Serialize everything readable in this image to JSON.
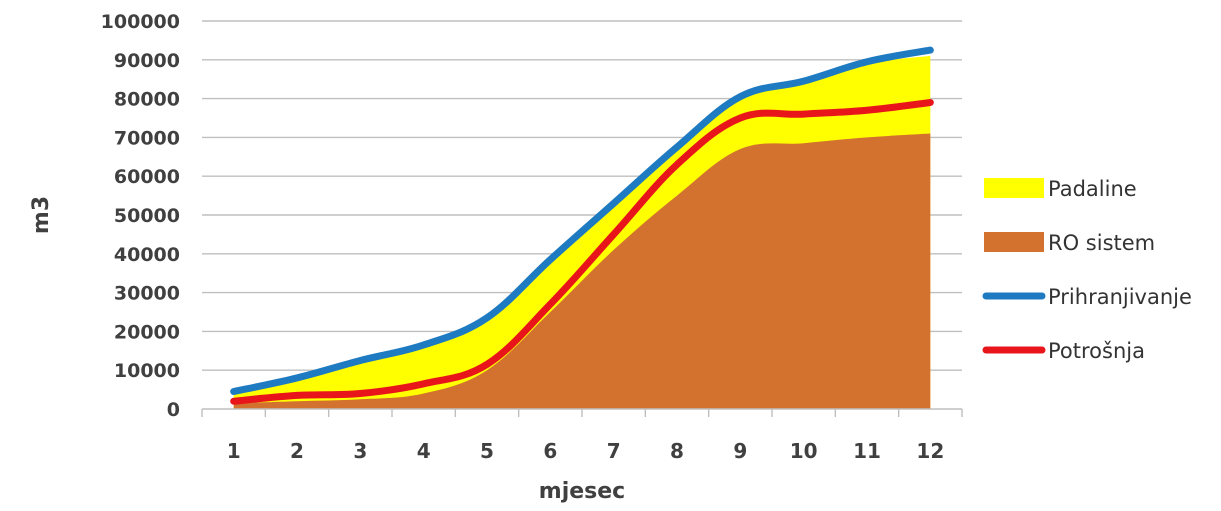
{
  "chart_data": {
    "type": "area",
    "xlabel": "mjesec",
    "ylabel": "m3",
    "ylim": [
      0,
      100000
    ],
    "yticks": [
      0,
      10000,
      20000,
      30000,
      40000,
      50000,
      60000,
      70000,
      80000,
      90000,
      100000
    ],
    "grid": true,
    "legend_position": "right",
    "categories": [
      "1",
      "2",
      "3",
      "4",
      "5",
      "6",
      "7",
      "8",
      "9",
      "10",
      "11",
      "12"
    ],
    "series": [
      {
        "name": "Padaline",
        "kind": "area",
        "color": "#ffff00",
        "values": [
          4500,
          7500,
          12000,
          16000,
          22500,
          37500,
          52000,
          67000,
          80000,
          84000,
          89000,
          91000
        ]
      },
      {
        "name": "RO sistem",
        "kind": "area",
        "color": "#d2722e",
        "values": [
          1500,
          2000,
          2500,
          4000,
          10000,
          25000,
          41000,
          55000,
          67000,
          68500,
          70000,
          71000
        ]
      },
      {
        "name": "Prihranjivanje",
        "kind": "line",
        "color": "#1f7bc1",
        "values": [
          4500,
          8000,
          12500,
          16500,
          23500,
          38500,
          53000,
          67500,
          80500,
          84500,
          89500,
          92500
        ]
      },
      {
        "name": "Potrošnja",
        "kind": "line",
        "color": "#e8161b",
        "values": [
          2000,
          3500,
          4000,
          6500,
          11500,
          27000,
          45000,
          63000,
          75000,
          76000,
          77000,
          79000
        ]
      }
    ]
  }
}
